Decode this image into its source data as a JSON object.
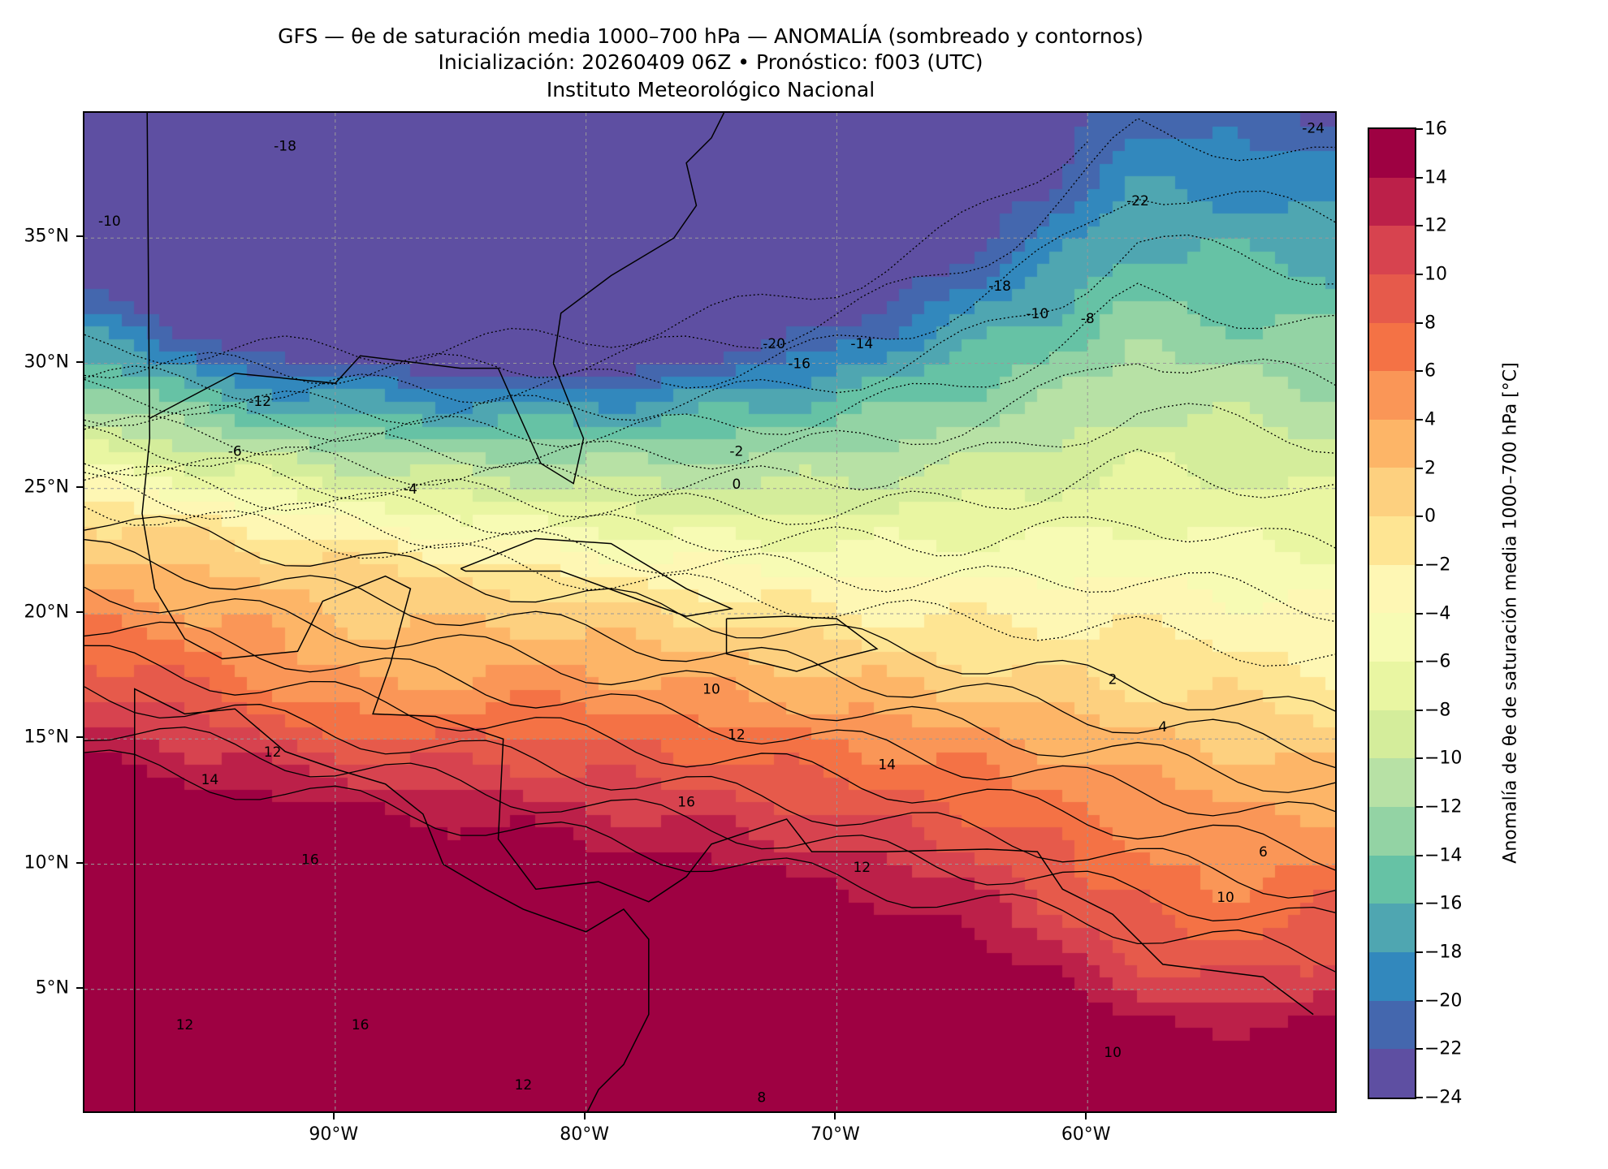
{
  "title": {
    "line1": "GFS — θe de saturación media 1000–700 hPa — ANOMALÍA (sombreado y contornos)",
    "line2": "Inicialización: 20260409 06Z   •   Pronóstico: f003 (UTC)",
    "line3": "Instituto Meteorológico Nacional"
  },
  "map": {
    "extent": {
      "lon": [
        -100,
        -50
      ],
      "lat": [
        0,
        40
      ]
    },
    "x_ticks": [
      {
        "lon": -90,
        "label": "90°W"
      },
      {
        "lon": -80,
        "label": "80°W"
      },
      {
        "lon": -70,
        "label": "70°W"
      },
      {
        "lon": -60,
        "label": "60°W"
      }
    ],
    "y_ticks": [
      {
        "lat": 35,
        "label": "35°N"
      },
      {
        "lat": 30,
        "label": "30°N"
      },
      {
        "lat": 25,
        "label": "25°N"
      },
      {
        "lat": 20,
        "label": "20°N"
      },
      {
        "lat": 15,
        "label": "15°N"
      },
      {
        "lat": 10,
        "label": "10°N"
      },
      {
        "lat": 5,
        "label": "5°N"
      }
    ],
    "contour_labels": [
      {
        "lon": -92,
        "lat": 38.5,
        "text": "-18"
      },
      {
        "lon": -99,
        "lat": 35.5,
        "text": "-10"
      },
      {
        "lon": -93,
        "lat": 28.3,
        "text": "-12"
      },
      {
        "lon": -94,
        "lat": 26.3,
        "text": "-6"
      },
      {
        "lon": -87,
        "lat": 24.8,
        "text": "-4"
      },
      {
        "lon": -74,
        "lat": 26.3,
        "text": "-2"
      },
      {
        "lon": -74,
        "lat": 25.0,
        "text": "0"
      },
      {
        "lon": -72.5,
        "lat": 30.6,
        "text": "-20"
      },
      {
        "lon": -71.5,
        "lat": 29.8,
        "text": "-16"
      },
      {
        "lon": -69,
        "lat": 30.6,
        "text": "-14"
      },
      {
        "lon": -62,
        "lat": 31.8,
        "text": "-10"
      },
      {
        "lon": -60,
        "lat": 31.6,
        "text": "-8"
      },
      {
        "lon": -63.5,
        "lat": 32.9,
        "text": "-18"
      },
      {
        "lon": -58,
        "lat": 36.3,
        "text": "-22"
      },
      {
        "lon": -51,
        "lat": 39.2,
        "text": "-24"
      },
      {
        "lon": -75,
        "lat": 16.8,
        "text": "10"
      },
      {
        "lon": -74,
        "lat": 15.0,
        "text": "12"
      },
      {
        "lon": -76,
        "lat": 12.3,
        "text": "16"
      },
      {
        "lon": -68,
        "lat": 13.8,
        "text": "14"
      },
      {
        "lon": -69,
        "lat": 9.7,
        "text": "12"
      },
      {
        "lon": -57,
        "lat": 15.3,
        "text": "4"
      },
      {
        "lon": -59,
        "lat": 17.2,
        "text": "2"
      },
      {
        "lon": -53,
        "lat": 10.3,
        "text": "6"
      },
      {
        "lon": -54.5,
        "lat": 8.5,
        "text": "10"
      },
      {
        "lon": -91,
        "lat": 10.0,
        "text": "16"
      },
      {
        "lon": -95,
        "lat": 13.2,
        "text": "14"
      },
      {
        "lon": -92.5,
        "lat": 14.3,
        "text": "12"
      },
      {
        "lon": -96,
        "lat": 3.4,
        "text": "12"
      },
      {
        "lon": -89,
        "lat": 3.4,
        "text": "16"
      },
      {
        "lon": -59,
        "lat": 2.3,
        "text": "10"
      },
      {
        "lon": -73,
        "lat": 0.5,
        "text": "8"
      },
      {
        "lon": -82.5,
        "lat": 1.0,
        "text": "12"
      }
    ]
  },
  "colorbar": {
    "label": "Anomalía de θe de saturación media 1000–700 hPa [°C]",
    "levels": [
      -24,
      -22,
      -20,
      -18,
      -16,
      -14,
      -12,
      -10,
      -8,
      -6,
      -4,
      -2,
      0,
      2,
      4,
      6,
      8,
      10,
      12,
      14,
      16
    ],
    "tick_labels": [
      "−24",
      "−22",
      "−20",
      "−18",
      "−16",
      "−14",
      "−12",
      "−10",
      "−8",
      "−6",
      "−4",
      "−2",
      "0",
      "2",
      "4",
      "6",
      "8",
      "10",
      "12",
      "14",
      "16"
    ],
    "colors": [
      "#5e4fa2",
      "#4467ae",
      "#3288bd",
      "#4fa6b1",
      "#66c2a5",
      "#93d3a4",
      "#b7e1a5",
      "#d4ed9b",
      "#e9f6a2",
      "#f7fbb4",
      "#fef7b4",
      "#fee593",
      "#fdd07f",
      "#fdb567",
      "#fa9657",
      "#f47245",
      "#e65a4b",
      "#d7434f",
      "#bc2049",
      "#9e0142"
    ]
  }
}
